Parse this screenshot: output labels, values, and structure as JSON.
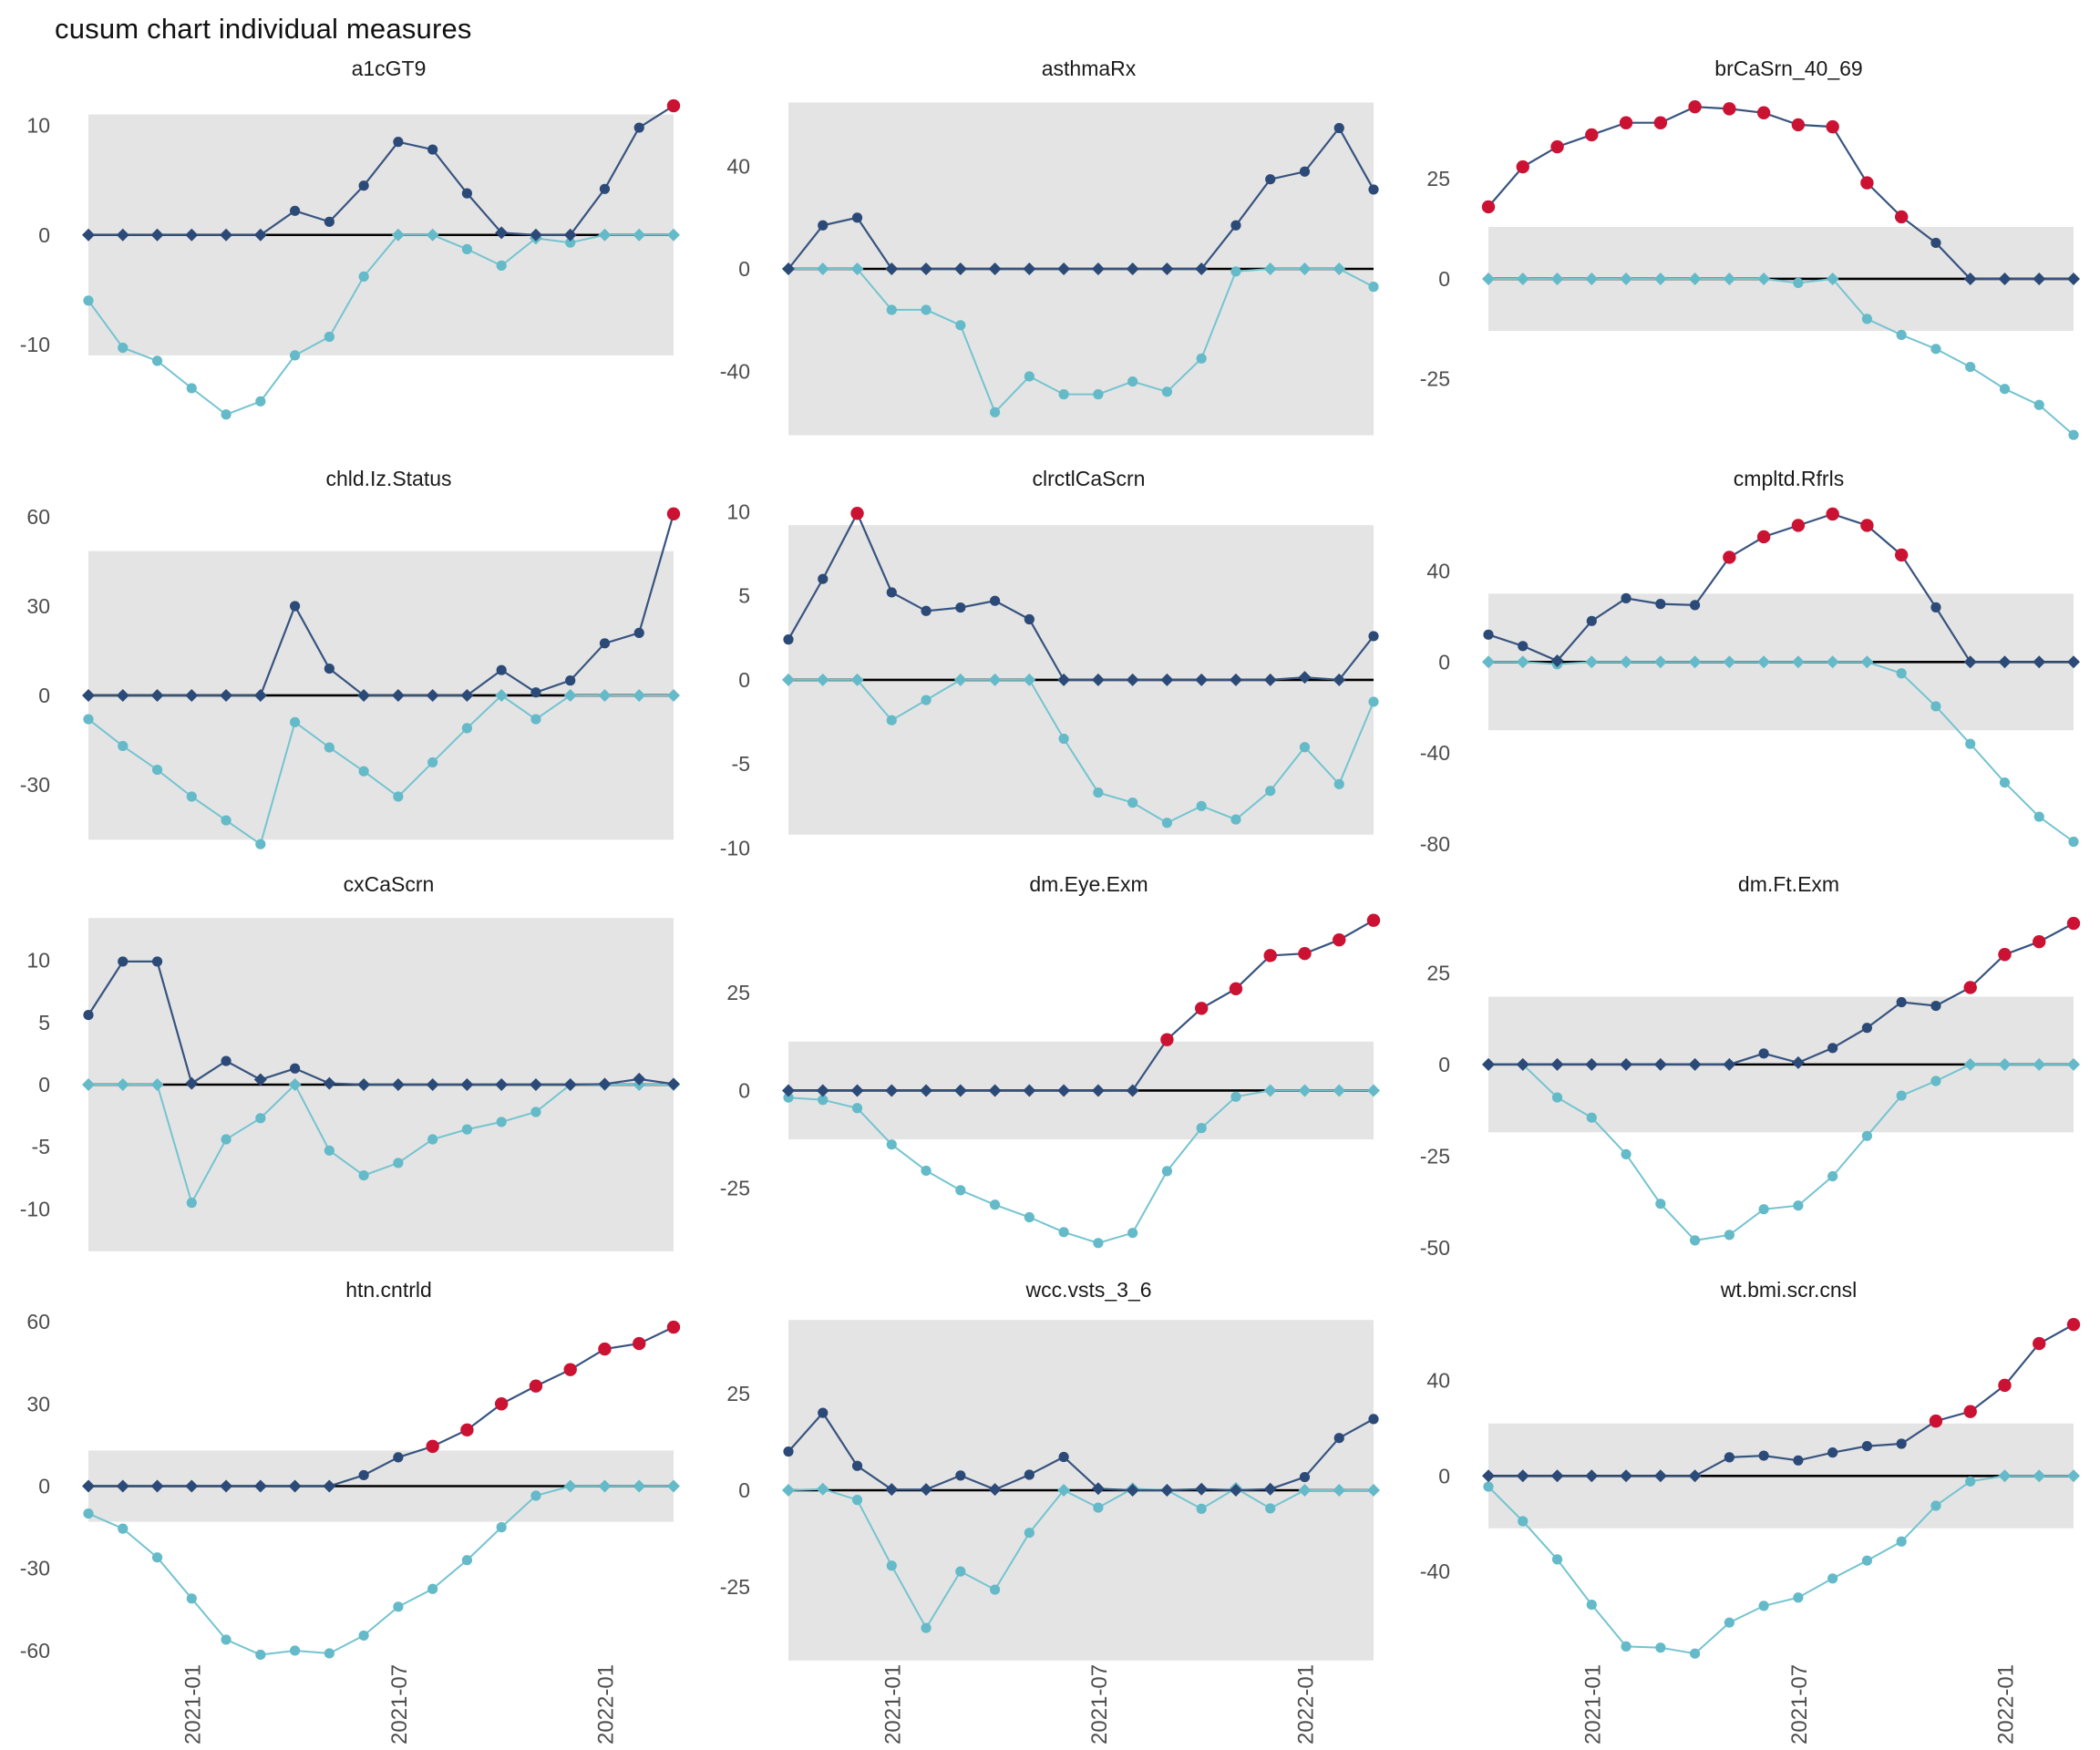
{
  "page_title": "cusum chart  individual measures",
  "colors": {
    "upper_line": "#37547f",
    "upper_point": "#2c4a77",
    "lower_line": "#74c4d0",
    "lower_point": "#64bac8",
    "signal_point": "#cc1233",
    "band": "#e4e4e4",
    "center_line": "#000000",
    "tick_label": "#4d4d4d",
    "background": "#ffffff"
  },
  "x_axis": {
    "n_points": 18,
    "tick_indices": [
      3,
      9,
      15
    ],
    "tick_labels": [
      "2021-01",
      "2021-07",
      "2022-01"
    ]
  },
  "chart_data": [
    {
      "type": "line",
      "title": "a1cGT9",
      "yticks": [
        10,
        0,
        -10
      ],
      "ylim": [
        -19,
        12.8
      ],
      "band": [
        -11,
        11
      ],
      "upper": [
        0,
        0,
        0,
        0,
        0,
        0,
        2.2,
        1.2,
        4.5,
        8.5,
        7.8,
        3.8,
        0.2,
        0,
        0,
        4.2,
        9.8,
        11.8
      ],
      "lower": [
        -6,
        -10.3,
        -11.5,
        -14,
        -16.4,
        -15.2,
        -11,
        -9.3,
        -3.8,
        0,
        0,
        -1.3,
        -2.8,
        -0.3,
        -0.7,
        0,
        0,
        0
      ],
      "red_indices": [
        17
      ]
    },
    {
      "type": "line",
      "title": "asthmaRx",
      "yticks": [
        40,
        0,
        -40
      ],
      "ylim": [
        -68,
        68
      ],
      "band": [
        -65,
        65
      ],
      "upper": [
        0,
        17,
        20,
        0,
        0,
        0,
        0,
        0,
        0,
        0,
        0,
        0,
        0,
        17,
        35,
        38,
        55,
        31
      ],
      "lower": [
        0,
        0,
        0,
        -16,
        -16,
        -22,
        -56,
        -42,
        -49,
        -49,
        -44,
        -48,
        -35,
        -1,
        0,
        0,
        0,
        -7
      ],
      "red_indices": []
    },
    {
      "type": "line",
      "title": "brCaSrn_40_69",
      "yticks": [
        25,
        0,
        -25
      ],
      "ylim": [
        -41,
        46
      ],
      "band": [
        -13,
        13
      ],
      "upper": [
        18,
        28,
        33,
        36,
        39,
        39,
        43,
        42.5,
        41.5,
        38.5,
        38,
        24,
        15.5,
        9,
        0,
        0,
        0,
        0
      ],
      "lower": [
        0,
        0,
        0,
        0,
        0,
        0,
        0,
        0,
        0,
        -1,
        0,
        -10,
        -14,
        -17.5,
        -22,
        -27.5,
        -31.5,
        -39
      ],
      "red_indices": [
        0,
        1,
        2,
        3,
        4,
        5,
        6,
        7,
        8,
        9,
        10,
        11,
        12
      ]
    },
    {
      "type": "line",
      "title": "chld.Iz.Status",
      "yticks": [
        60,
        30,
        0,
        -30
      ],
      "ylim": [
        -53,
        64
      ],
      "band": [
        -48.5,
        48.5
      ],
      "upper": [
        0,
        0,
        0,
        0,
        0,
        0,
        30,
        9,
        0,
        0,
        0,
        0,
        8.5,
        1,
        5,
        17.5,
        21,
        61
      ],
      "lower": [
        -8,
        -17,
        -25,
        -34,
        -42,
        -50,
        -9,
        -17.5,
        -25.5,
        -34,
        -22.5,
        -11,
        0,
        -8,
        0,
        0,
        0,
        0
      ],
      "red_indices": [
        17
      ]
    },
    {
      "type": "line",
      "title": "clrctlCaScrn",
      "yticks": [
        10,
        5,
        0,
        -5,
        -10
      ],
      "ylim": [
        -10.3,
        10.4
      ],
      "band": [
        -9.2,
        9.2
      ],
      "upper": [
        2.4,
        6,
        9.9,
        5.2,
        4.1,
        4.3,
        4.7,
        3.6,
        0,
        0,
        0,
        0,
        0,
        0,
        0,
        0.15,
        0,
        2.6
      ],
      "lower": [
        0,
        0,
        0,
        -2.4,
        -1.2,
        0,
        0,
        0,
        -3.5,
        -6.7,
        -7.3,
        -8.5,
        -7.5,
        -8.3,
        -6.6,
        -4,
        -6.2,
        -1.3
      ],
      "red_indices": [
        2
      ]
    },
    {
      "type": "line",
      "title": "cmpltd.Rfrls",
      "yticks": [
        40,
        0,
        -40,
        -80
      ],
      "ylim": [
        -84,
        69
      ],
      "band": [
        -30,
        30
      ],
      "upper": [
        12,
        7,
        0.5,
        18,
        28,
        25.5,
        25,
        46,
        55,
        60,
        65,
        60,
        47,
        24,
        0,
        0,
        0,
        0
      ],
      "lower": [
        0,
        0,
        -1,
        0,
        0,
        0,
        0,
        0,
        0,
        0,
        0,
        0,
        -5,
        -19.5,
        -36,
        -53,
        -68,
        -79
      ],
      "red_indices": [
        7,
        8,
        9,
        10,
        11,
        12
      ]
    },
    {
      "type": "line",
      "title": "cxCaScrn",
      "yticks": [
        10,
        5,
        0,
        -5,
        -10
      ],
      "ylim": [
        -14,
        14
      ],
      "band": [
        -13.4,
        13.4
      ],
      "upper": [
        5.6,
        9.9,
        9.9,
        0.1,
        1.9,
        0.4,
        1.3,
        0.1,
        0,
        0,
        0,
        0,
        0,
        0,
        0,
        0.05,
        0.45,
        0.05
      ],
      "lower": [
        0,
        0,
        0,
        -9.5,
        -4.4,
        -2.7,
        0,
        -5.3,
        -7.3,
        -6.3,
        -4.4,
        -3.6,
        -3,
        -2.2,
        0,
        0,
        0,
        0
      ],
      "red_indices": []
    },
    {
      "type": "line",
      "title": "dm.Eye.Exm",
      "yticks": [
        25,
        0,
        -25
      ],
      "ylim": [
        -43,
        46
      ],
      "band": [
        -12.5,
        12.5
      ],
      "upper": [
        0,
        0,
        0,
        0,
        0,
        0,
        0,
        0,
        0,
        0,
        0,
        13,
        21,
        26,
        34.5,
        35,
        38.5,
        43.5
      ],
      "lower": [
        -1.8,
        -2.4,
        -4.5,
        -13.8,
        -20.5,
        -25.5,
        -29.2,
        -32.4,
        -36.2,
        -39,
        -36.4,
        -20.6,
        -9.6,
        -1.6,
        0,
        0,
        0,
        0
      ],
      "red_indices": [
        11,
        12,
        13,
        14,
        15,
        16,
        17
      ]
    },
    {
      "type": "line",
      "title": "dm.Ft.Exm",
      "yticks": [
        25,
        0,
        -25,
        -50
      ],
      "ylim": [
        -53,
        42
      ],
      "band": [
        -18.5,
        18.5
      ],
      "upper": [
        0,
        0,
        0,
        0,
        0,
        0,
        0,
        0,
        3,
        0.5,
        4.5,
        10,
        17,
        16,
        21,
        30,
        33.5,
        38.5
      ],
      "lower": [
        0,
        0,
        -9,
        -14.5,
        -24.5,
        -38,
        -48,
        -46.5,
        -39.5,
        -38.5,
        -30.5,
        -19.5,
        -8.5,
        -4.5,
        0,
        0,
        0,
        0
      ],
      "red_indices": [
        14,
        15,
        16,
        17
      ]
    },
    {
      "type": "line",
      "title": "htn.cntrld",
      "yticks": [
        60,
        30,
        0,
        -30,
        -60
      ],
      "ylim": [
        -65,
        62
      ],
      "band": [
        -13,
        13
      ],
      "upper": [
        0,
        0,
        0,
        0,
        0,
        0,
        0,
        0,
        4,
        10.5,
        14.5,
        20.5,
        30,
        36.5,
        42.5,
        50,
        52,
        58
      ],
      "lower": [
        -10,
        -15.5,
        -26,
        -41,
        -56,
        -61.5,
        -60,
        -61,
        -54.5,
        -44,
        -37.5,
        -27,
        -15,
        -3.5,
        0,
        0,
        0,
        0
      ],
      "red_indices": [
        10,
        11,
        12,
        13,
        14,
        15,
        16,
        17
      ]
    },
    {
      "type": "line",
      "title": "wcc.vsts_3_6",
      "yticks": [
        25,
        0,
        -25
      ],
      "ylim": [
        -45,
        45
      ],
      "band": [
        -44,
        44
      ],
      "upper": [
        10,
        20,
        6.3,
        0.2,
        0.2,
        3.8,
        0.2,
        4,
        8.6,
        0.4,
        0,
        0,
        0.3,
        0,
        0.3,
        3.4,
        13.5,
        18.4
      ],
      "lower": [
        0,
        0.3,
        -2.5,
        -19.5,
        -35.6,
        -21,
        -25.7,
        -11,
        0,
        -4.5,
        0.4,
        0,
        -4.8,
        0.5,
        -4.7,
        0,
        0,
        0
      ],
      "red_indices": []
    },
    {
      "type": "line",
      "title": "wt.bmi.scr.cnsl",
      "yticks": [
        40,
        0,
        -40
      ],
      "ylim": [
        -79,
        67
      ],
      "band": [
        -22,
        22
      ],
      "upper": [
        0,
        0,
        0,
        0,
        0,
        0,
        0,
        7.8,
        8.5,
        6.5,
        9.8,
        12.5,
        13.5,
        23,
        27,
        38,
        55.5,
        63.5
      ],
      "lower": [
        -4.5,
        -19,
        -35,
        -54,
        -71.5,
        -72,
        -74.5,
        -61.5,
        -54.5,
        -51,
        -43,
        -35.5,
        -27.5,
        -12.5,
        -2.3,
        0,
        0,
        0
      ],
      "red_indices": [
        13,
        14,
        15,
        16,
        17
      ]
    }
  ]
}
